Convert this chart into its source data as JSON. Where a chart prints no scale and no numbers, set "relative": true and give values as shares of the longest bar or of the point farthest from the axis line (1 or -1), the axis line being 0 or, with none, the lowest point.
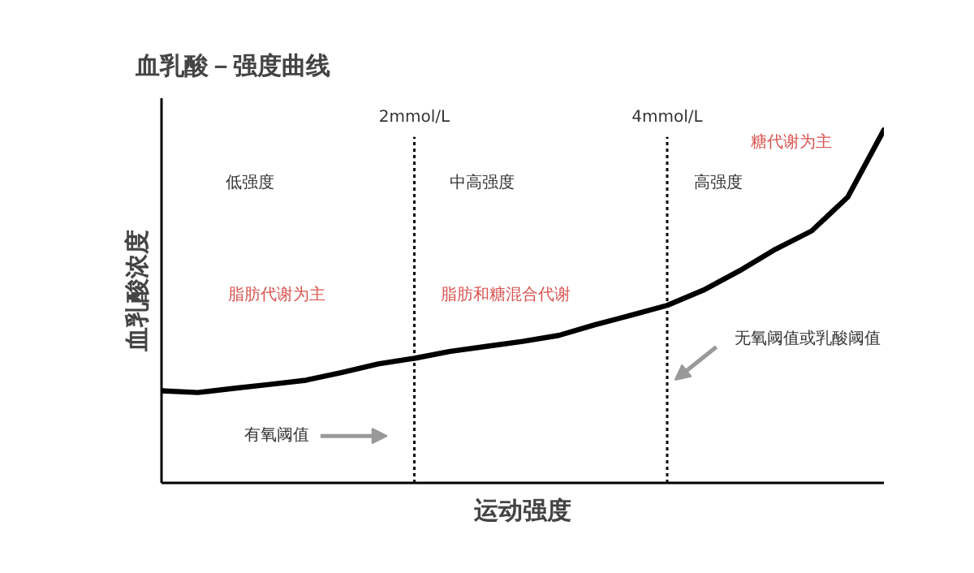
{
  "chart_data": {
    "type": "line",
    "title": "血乳酸－强度曲线",
    "xlabel": "运动强度",
    "ylabel": "血乳酸浓度",
    "relative": true,
    "categories": [
      null,
      null,
      null,
      null,
      null,
      null,
      null,
      null,
      null,
      null,
      null,
      null,
      null,
      null,
      null,
      null,
      null,
      null,
      null,
      null,
      null
    ],
    "series": [
      {
        "color": "#000000",
        "values": [
          0.261,
          0.256,
          0.268,
          0.279,
          0.291,
          0.313,
          0.337,
          0.353,
          0.373,
          0.387,
          0.401,
          0.418,
          0.448,
          0.475,
          0.503,
          0.546,
          0.601,
          0.662,
          0.714,
          0.81,
          1
        ]
      }
    ],
    "annotations": [
      "低强度",
      "中高强度",
      "高强度",
      "糖代谢为主",
      "脂肪代谢为主",
      "脂肪和糖混合代谢",
      "有氧阈值",
      "无氧阈值或乳酸阈值",
      "2mmol/L",
      "4mmol/L"
    ]
  }
}
